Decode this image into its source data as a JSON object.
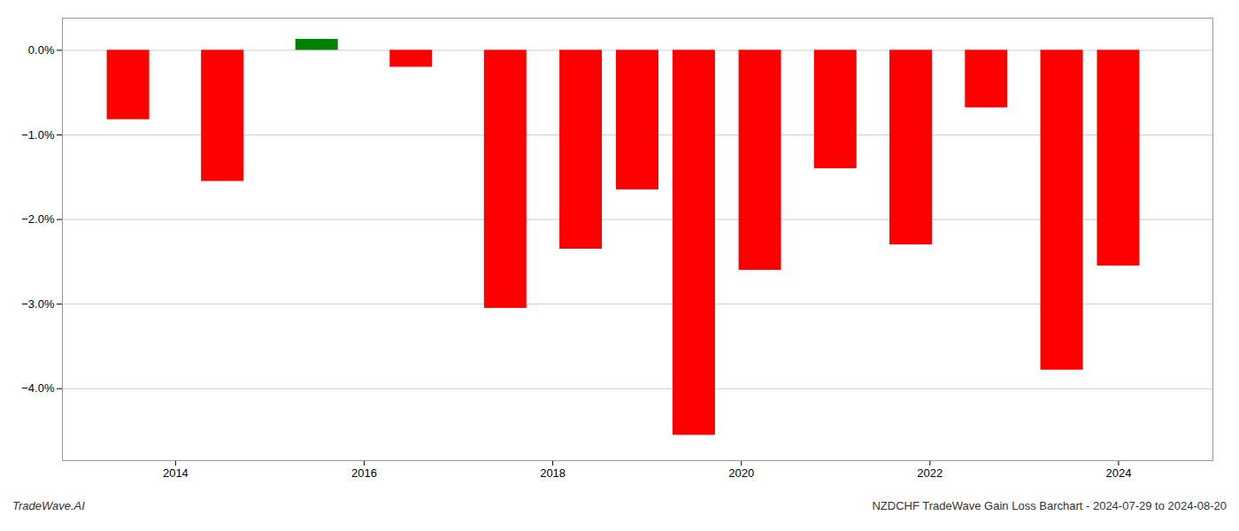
{
  "chart_data": {
    "type": "bar",
    "x": [
      2013.5,
      2014.5,
      2015.5,
      2016.5,
      2017.5,
      2018.3,
      2018.9,
      2019.5,
      2020.2,
      2021.0,
      2021.8,
      2022.6,
      2023.4,
      2024.0
    ],
    "values": [
      -0.82,
      -1.55,
      0.13,
      -0.2,
      -3.05,
      -2.35,
      -1.65,
      -4.55,
      -2.6,
      -1.4,
      -2.3,
      -0.68,
      -3.78,
      -2.55
    ],
    "colors": [
      "#ff0000",
      "#ff0000",
      "#008000",
      "#ff0000",
      "#ff0000",
      "#ff0000",
      "#ff0000",
      "#ff0000",
      "#ff0000",
      "#ff0000",
      "#ff0000",
      "#ff0000",
      "#ff0000",
      "#ff0000"
    ],
    "xlim": [
      2012.8,
      2025.0
    ],
    "xticks": [
      2014,
      2016,
      2018,
      2020,
      2022,
      2024
    ],
    "ylim": [
      -4.85,
      0.38
    ],
    "yticks": [
      {
        "value": 0.0,
        "label": "0.0%"
      },
      {
        "value": -1.0,
        "label": "−1.0%"
      },
      {
        "value": -2.0,
        "label": "−2.0%"
      },
      {
        "value": -3.0,
        "label": "−3.0%"
      },
      {
        "value": -4.0,
        "label": "−4.0%"
      }
    ],
    "grid": "y",
    "annotations": [
      "TradeWave.AI",
      "NZDCHF TradeWave Gain Loss Barchart - 2024-07-29 to 2024-08-20"
    ]
  }
}
